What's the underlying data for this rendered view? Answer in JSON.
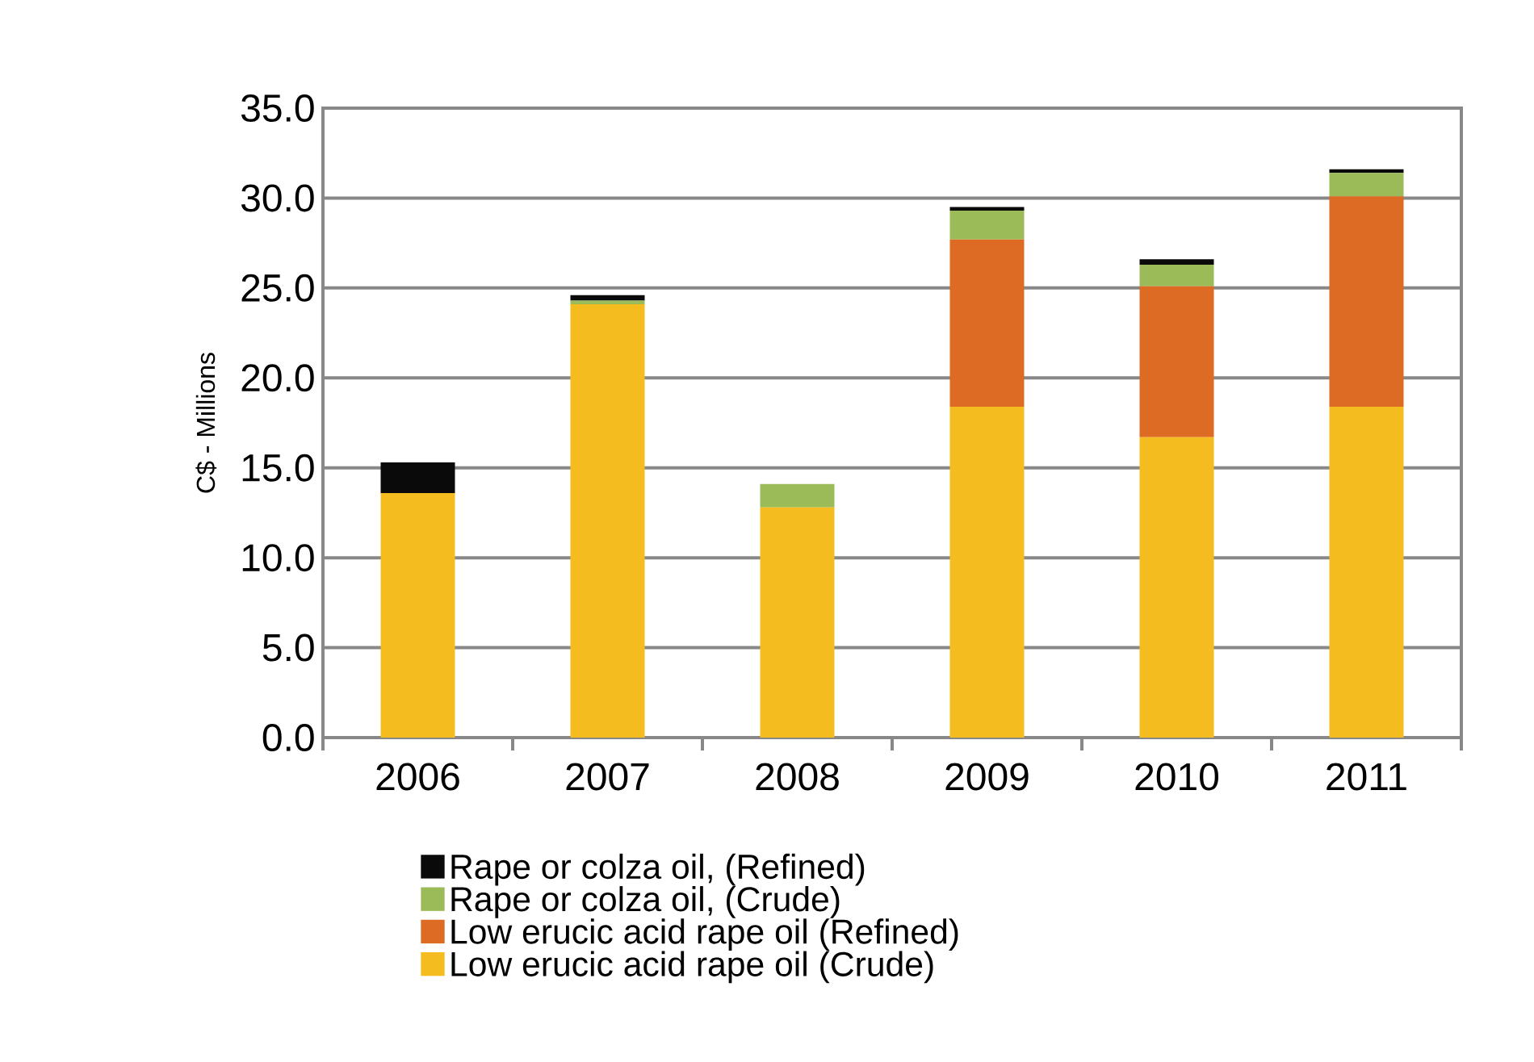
{
  "chart_data": {
    "type": "bar",
    "stacked": true,
    "ylabel": "C$ - Millions",
    "categories": [
      "2006",
      "2007",
      "2008",
      "2009",
      "2010",
      "2011"
    ],
    "series": [
      {
        "name": "Low erucic acid rape oil (Crude)",
        "color": "#f5bc1f",
        "values": [
          13.6,
          24.1,
          12.8,
          18.4,
          16.7,
          18.4
        ]
      },
      {
        "name": "Low erucic acid rape oil (Refined)",
        "color": "#dd6b24",
        "values": [
          0,
          0,
          0,
          9.3,
          8.4,
          11.7
        ]
      },
      {
        "name": "Rape or colza oil, (Crude)",
        "color": "#9bbb59",
        "values": [
          0,
          0.2,
          1.3,
          1.6,
          1.2,
          1.3
        ]
      },
      {
        "name": "Rape or colza oil, (Refined)",
        "color": "#0a0a0a",
        "values": [
          1.7,
          0.3,
          0,
          0.2,
          0.3,
          0.2
        ]
      }
    ],
    "ylim": [
      0,
      35
    ],
    "yticks": [
      {
        "value": 0,
        "label": "0.0"
      },
      {
        "value": 5,
        "label": "5.0"
      },
      {
        "value": 10,
        "label": "10.0"
      },
      {
        "value": 15,
        "label": "15.0"
      },
      {
        "value": 20,
        "label": "20.0"
      },
      {
        "value": 25,
        "label": "25.0"
      },
      {
        "value": 30,
        "label": "30.0"
      },
      {
        "value": 35,
        "label": "35.0"
      }
    ],
    "grid": "y",
    "legend": "bottom"
  }
}
